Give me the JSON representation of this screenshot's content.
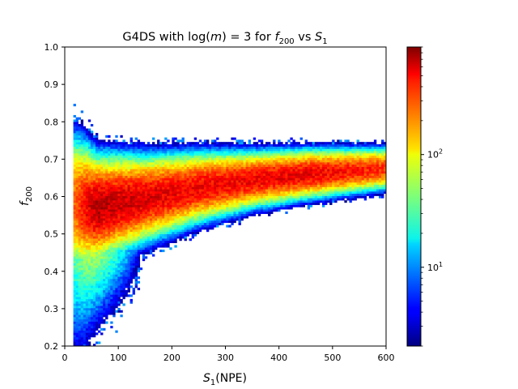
{
  "chart_data": {
    "type": "heatmap",
    "title": {
      "prefix": "G4DS with log(",
      "m": "m",
      "mid": ") = 3 for ",
      "f": "f",
      "fsub": "200",
      "vs": " vs ",
      "s": "S",
      "ssub": "1"
    },
    "xlabel": {
      "s": "S",
      "sub": "1",
      "rest": "(NPE)"
    },
    "ylabel": {
      "f": "f",
      "sub": "200"
    },
    "xlim": [
      0,
      600
    ],
    "ylim": [
      0.2,
      1.0
    ],
    "xticks": [
      0,
      100,
      200,
      300,
      400,
      500,
      600
    ],
    "yticks": [
      0.2,
      0.3,
      0.4,
      0.5,
      0.6,
      0.7,
      0.8,
      0.9,
      1.0
    ],
    "ytick_labels": [
      "0.2",
      "0.3",
      "0.4",
      "0.5",
      "0.6",
      "0.7",
      "0.8",
      "0.9",
      "1.0"
    ],
    "xtick_labels": [
      "0",
      "100",
      "200",
      "300",
      "400",
      "500",
      "600"
    ],
    "grid": false,
    "colorbar": {
      "scale": "log",
      "colormap": "jet",
      "range": [
        2,
        900
      ],
      "ticks": [
        {
          "value": 10,
          "base": "10",
          "exp": "1"
        },
        {
          "value": 100,
          "base": "10",
          "exp": "2"
        }
      ]
    },
    "distribution": {
      "description_units": "data",
      "bin_width_x": 4.6,
      "bin_height_y": 0.006,
      "x_start": 16,
      "x_end": 600,
      "ridge": [
        {
          "x": 20,
          "mean": 0.58,
          "sigma": 0.075,
          "peak": 240
        },
        {
          "x": 60,
          "mean": 0.57,
          "sigma": 0.055,
          "peak": 650
        },
        {
          "x": 150,
          "mean": 0.595,
          "sigma": 0.045,
          "peak": 520
        },
        {
          "x": 250,
          "mean": 0.625,
          "sigma": 0.037,
          "peak": 450
        },
        {
          "x": 350,
          "mean": 0.645,
          "sigma": 0.03,
          "peak": 450
        },
        {
          "x": 450,
          "mean": 0.66,
          "sigma": 0.026,
          "peak": 480
        },
        {
          "x": 600,
          "mean": 0.675,
          "sigma": 0.022,
          "peak": 320
        }
      ]
    }
  }
}
